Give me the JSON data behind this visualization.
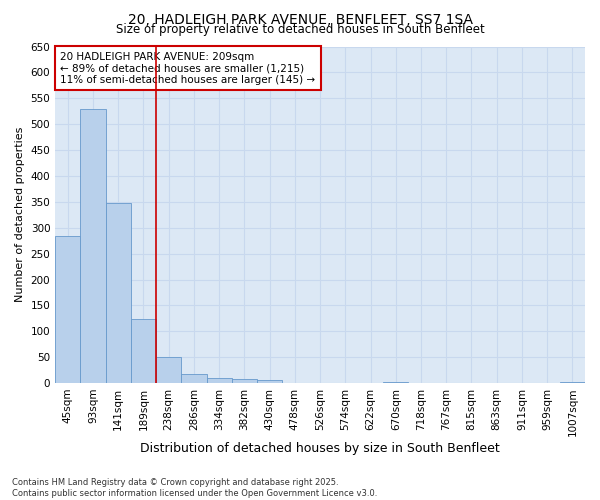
{
  "title1": "20, HADLEIGH PARK AVENUE, BENFLEET, SS7 1SA",
  "title2": "Size of property relative to detached houses in South Benfleet",
  "xlabel": "Distribution of detached houses by size in South Benfleet",
  "ylabel": "Number of detached properties",
  "categories": [
    "45sqm",
    "93sqm",
    "141sqm",
    "189sqm",
    "238sqm",
    "286sqm",
    "334sqm",
    "382sqm",
    "430sqm",
    "478sqm",
    "526sqm",
    "574sqm",
    "622sqm",
    "670sqm",
    "718sqm",
    "767sqm",
    "815sqm",
    "863sqm",
    "911sqm",
    "959sqm",
    "1007sqm"
  ],
  "values": [
    285,
    530,
    348,
    123,
    50,
    18,
    10,
    8,
    5,
    0,
    0,
    0,
    0,
    3,
    0,
    0,
    0,
    0,
    0,
    0,
    3
  ],
  "bar_color": "#b8d0eb",
  "bar_edge_color": "#6699cc",
  "grid_color": "#c8d8ee",
  "background_color": "#dce8f5",
  "vline_pos": 3.5,
  "vline_color": "#cc0000",
  "annotation_line1": "20 HADLEIGH PARK AVENUE: 209sqm",
  "annotation_line2": "← 89% of detached houses are smaller (1,215)",
  "annotation_line3": "11% of semi-detached houses are larger (145) →",
  "annotation_box_color": "#ffffff",
  "annotation_box_edge": "#cc0000",
  "footnote": "Contains HM Land Registry data © Crown copyright and database right 2025.\nContains public sector information licensed under the Open Government Licence v3.0.",
  "ylim": [
    0,
    650
  ],
  "yticks": [
    0,
    50,
    100,
    150,
    200,
    250,
    300,
    350,
    400,
    450,
    500,
    550,
    600,
    650
  ],
  "title1_fontsize": 10,
  "title2_fontsize": 8.5,
  "xlabel_fontsize": 9,
  "ylabel_fontsize": 8,
  "tick_fontsize": 7.5,
  "annot_fontsize": 7.5,
  "footnote_fontsize": 6
}
